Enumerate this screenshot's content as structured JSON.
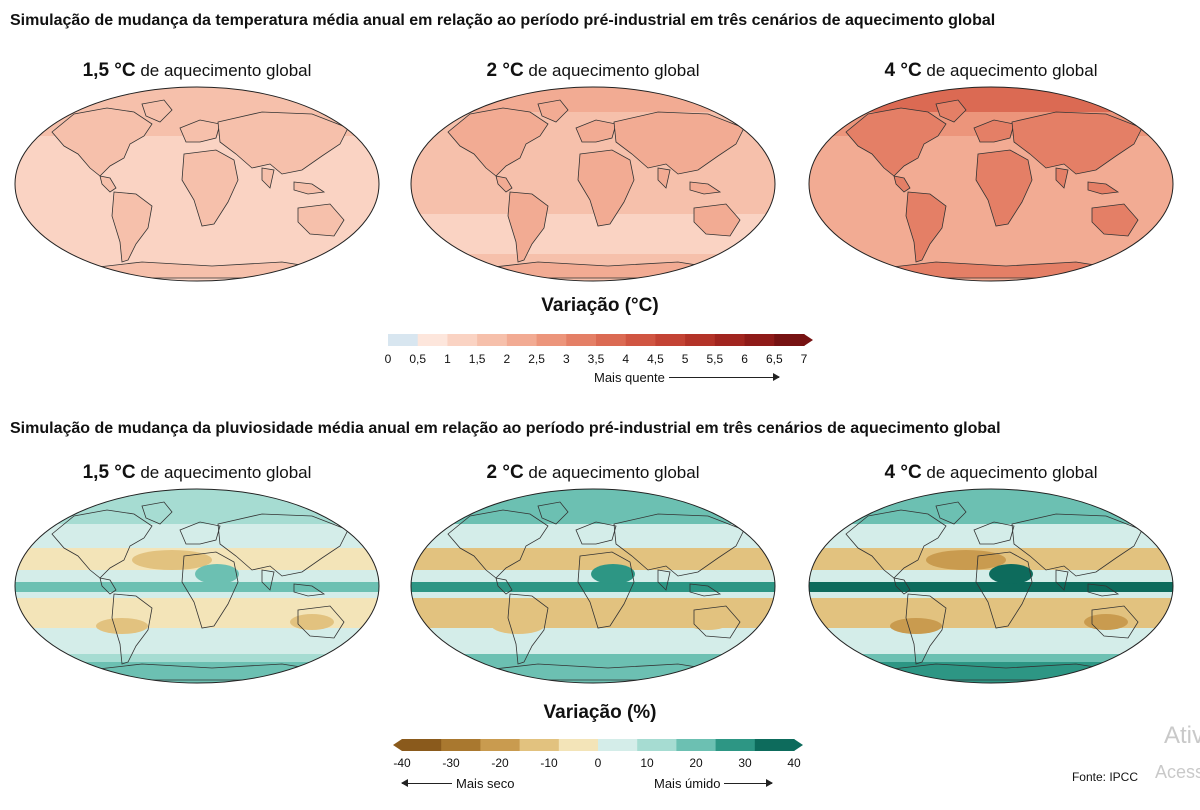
{
  "temperature": {
    "title": "Simulação de mudança da temperatura média anual em relação ao período pré-industrial em três cenários de aquecimento global",
    "panels": [
      {
        "deg": "1,5 °C",
        "suffix": " de aquecimento global",
        "intensity": 0.35
      },
      {
        "deg": "2 °C",
        "suffix": " de aquecimento global",
        "intensity": 0.5
      },
      {
        "deg": "4 °C",
        "suffix": " de aquecimento global",
        "intensity": 1.0
      }
    ],
    "legend": {
      "title": "Variação (°C)",
      "ticks": [
        "0",
        "0,5",
        "1",
        "1,5",
        "2",
        "2,5",
        "3",
        "3,5",
        "4",
        "4,5",
        "5",
        "5,5",
        "6",
        "6,5",
        "7"
      ],
      "colors": [
        "#d8e6f0",
        "#fde6dc",
        "#fad3c3",
        "#f6c0ab",
        "#f2ab93",
        "#ec957b",
        "#e47f66",
        "#db6a53",
        "#d05542",
        "#c34334",
        "#b33328",
        "#a1251f",
        "#8e1a18",
        "#761212"
      ],
      "note": "Mais quente"
    }
  },
  "precipitation": {
    "title": "Simulação de mudança da pluviosidade média anual em relação ao período pré-industrial em três cenários de aquecimento global",
    "panels": [
      {
        "deg": "1,5 °C",
        "suffix": " de aquecimento global",
        "intensity": 0.4
      },
      {
        "deg": "2 °C",
        "suffix": " de aquecimento global",
        "intensity": 0.55
      },
      {
        "deg": "4 °C",
        "suffix": " de aquecimento global",
        "intensity": 1.0
      }
    ],
    "legend": {
      "title": "Variação (%)",
      "ticks": [
        "-40",
        "-30",
        "-20",
        "-10",
        "0",
        "10",
        "20",
        "30",
        "40"
      ],
      "colors": [
        "#8a5a1c",
        "#a9782f",
        "#c99b4f",
        "#e2c27f",
        "#f3e4b8",
        "#d4ede9",
        "#a6dcd2",
        "#6cc0b2",
        "#2d9684",
        "#0d6b5c"
      ],
      "note_left": "Mais seco",
      "note_right": "Mais úmido"
    }
  },
  "source": "Fonte: IPCC",
  "watermark": {
    "line1": "Ativ",
    "line2": "Acess"
  }
}
